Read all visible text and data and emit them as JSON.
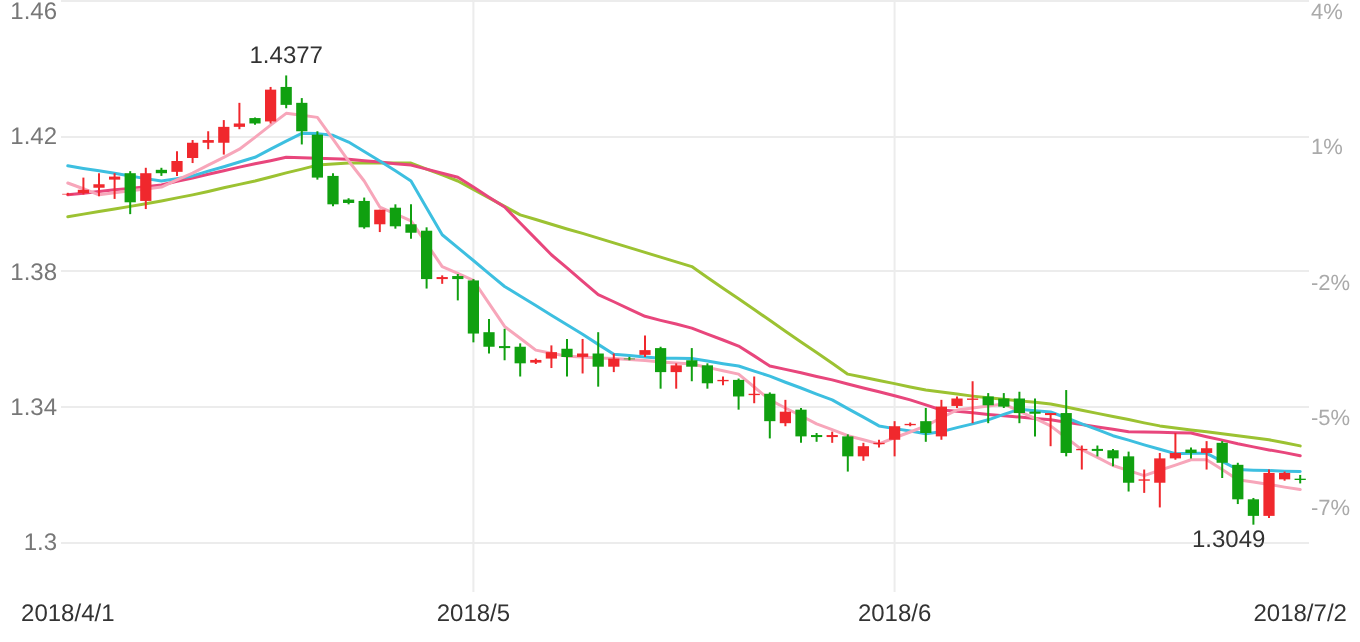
{
  "chart_data": {
    "type": "candlestick",
    "categories": [
      "2018/4/1",
      null,
      null,
      null,
      null,
      null,
      null,
      null,
      null,
      null,
      null,
      null,
      null,
      null,
      null,
      null,
      null,
      null,
      null,
      null,
      null,
      null,
      null,
      null,
      null,
      null,
      "2018/5",
      null,
      null,
      null,
      null,
      null,
      null,
      null,
      null,
      null,
      null,
      null,
      null,
      null,
      null,
      null,
      null,
      null,
      null,
      null,
      null,
      null,
      null,
      null,
      null,
      null,
      null,
      "2018/6",
      null,
      null,
      null,
      null,
      null,
      null,
      null,
      null,
      null,
      null,
      null,
      null,
      null,
      null,
      null,
      null,
      null,
      null,
      null,
      null,
      null,
      null,
      null,
      null,
      null,
      "2018/7/2"
    ],
    "ohlc": [
      [
        1.4025,
        1.403,
        1.4022,
        1.4027
      ],
      [
        1.4029,
        1.4075,
        1.4025,
        1.4039
      ],
      [
        1.4045,
        1.4088,
        1.402,
        1.4055
      ],
      [
        1.4069,
        1.4088,
        1.4012,
        1.4078
      ],
      [
        1.4088,
        1.4094,
        1.3967,
        1.4002
      ],
      [
        1.4006,
        1.4104,
        1.3982,
        1.4088
      ],
      [
        1.4098,
        1.4104,
        1.408,
        1.4088
      ],
      [
        1.4092,
        1.4153,
        1.408,
        1.4124
      ],
      [
        1.4133,
        1.4186,
        1.4118,
        1.4178
      ],
      [
        1.4178,
        1.4212,
        1.4159,
        1.4186
      ],
      [
        1.4178,
        1.4245,
        1.4143,
        1.4225
      ],
      [
        1.4225,
        1.4296,
        1.4218,
        1.4235
      ],
      [
        1.4251,
        1.4253,
        1.4231,
        1.4235
      ],
      [
        1.4241,
        1.4343,
        1.4235,
        1.4335
      ],
      [
        1.4343,
        1.4377,
        1.428,
        1.429
      ],
      [
        1.4296,
        1.431,
        1.4173,
        1.4212
      ],
      [
        1.4202,
        1.4212,
        1.4069,
        1.4075
      ],
      [
        1.408,
        1.4088,
        1.399,
        1.3996
      ],
      [
        1.401,
        1.4014,
        1.3996,
        1.4
      ],
      [
        1.4006,
        1.4016,
        1.3924,
        1.3928
      ],
      [
        1.3937,
        1.398,
        1.3914,
        1.398
      ],
      [
        1.3986,
        1.3996,
        1.3924,
        1.3931
      ],
      [
        1.3937,
        1.3996,
        1.3894,
        1.3912
      ],
      [
        1.3918,
        1.3928,
        1.3747,
        1.3775
      ],
      [
        1.3775,
        1.3786,
        1.3761,
        1.3781
      ],
      [
        1.3784,
        1.379,
        1.3712,
        1.3775
      ],
      [
        1.3771,
        1.3775,
        1.3588,
        1.3614
      ],
      [
        1.3618,
        1.3657,
        1.3555,
        1.3575
      ],
      [
        1.3577,
        1.3628,
        1.3535,
        1.3571
      ],
      [
        1.3575,
        1.3585,
        1.3487,
        1.3526
      ],
      [
        1.3528,
        1.354,
        1.3524,
        1.3536
      ],
      [
        1.354,
        1.3579,
        1.3512,
        1.3559
      ],
      [
        1.3569,
        1.3598,
        1.3487,
        1.3545
      ],
      [
        1.3545,
        1.3598,
        1.3496,
        1.3555
      ],
      [
        1.3555,
        1.3618,
        1.3457,
        1.3516
      ],
      [
        1.3516,
        1.3555,
        1.35,
        1.354
      ],
      [
        1.354,
        1.3545,
        1.3535,
        1.3538
      ],
      [
        1.3551,
        1.3608,
        1.3545,
        1.3565
      ],
      [
        1.3571,
        1.3575,
        1.3451,
        1.35
      ],
      [
        1.35,
        1.3526,
        1.3451,
        1.352
      ],
      [
        1.3535,
        1.3571,
        1.3473,
        1.3516
      ],
      [
        1.352,
        1.3526,
        1.3451,
        1.3467
      ],
      [
        1.3473,
        1.3487,
        1.3461,
        1.3477
      ],
      [
        1.3477,
        1.3481,
        1.3389,
        1.3428
      ],
      [
        1.3432,
        1.3487,
        1.3408,
        1.3436
      ],
      [
        1.3436,
        1.344,
        1.3304,
        1.3355
      ],
      [
        1.3349,
        1.3418,
        1.334,
        1.3383
      ],
      [
        1.3389,
        1.3394,
        1.3291,
        1.331
      ],
      [
        1.3314,
        1.332,
        1.3294,
        1.3308
      ],
      [
        1.3308,
        1.3324,
        1.3291,
        1.3314
      ],
      [
        1.331,
        1.3316,
        1.3206,
        1.3251
      ],
      [
        1.3251,
        1.3291,
        1.3238,
        1.3281
      ],
      [
        1.3287,
        1.33,
        1.3277,
        1.3291
      ],
      [
        1.33,
        1.3355,
        1.3251,
        1.334
      ],
      [
        1.3343,
        1.3351,
        1.334,
        1.3347
      ],
      [
        1.3355,
        1.3394,
        1.3294,
        1.332
      ],
      [
        1.331,
        1.3418,
        1.33,
        1.3398
      ],
      [
        1.34,
        1.3428,
        1.3394,
        1.3422
      ],
      [
        1.3418,
        1.3473,
        1.3349,
        1.3422
      ],
      [
        1.3428,
        1.3438,
        1.3349,
        1.3402
      ],
      [
        1.3422,
        1.3438,
        1.3394,
        1.3398
      ],
      [
        1.3422,
        1.3442,
        1.3349,
        1.3379
      ],
      [
        1.3383,
        1.3422,
        1.331,
        1.3377
      ],
      [
        1.3373,
        1.3379,
        1.3281,
        1.3379
      ],
      [
        1.3379,
        1.3447,
        1.3251,
        1.3261
      ],
      [
        1.3269,
        1.3283,
        1.3212,
        1.3273
      ],
      [
        1.3273,
        1.3283,
        1.3251,
        1.3267
      ],
      [
        1.3269,
        1.3273,
        1.3222,
        1.3245
      ],
      [
        1.3251,
        1.3265,
        1.3147,
        1.3173
      ],
      [
        1.3179,
        1.3212,
        1.3143,
        1.3183
      ],
      [
        1.3173,
        1.3261,
        1.31,
        1.3245
      ],
      [
        1.3245,
        1.332,
        1.3241,
        1.3261
      ],
      [
        1.3271,
        1.3277,
        1.3245,
        1.3261
      ],
      [
        1.3261,
        1.3296,
        1.3212,
        1.3275
      ],
      [
        1.3291,
        1.3296,
        1.3187,
        1.3232
      ],
      [
        1.3226,
        1.3232,
        1.311,
        1.3124
      ],
      [
        1.3124,
        1.3128,
        1.3049,
        1.3075
      ],
      [
        1.3075,
        1.3212,
        1.3069,
        1.3202
      ],
      [
        1.3183,
        1.3206,
        1.3179,
        1.3202
      ],
      [
        1.3185,
        1.3196,
        1.3171,
        1.3181
      ]
    ],
    "colors": [
      "#f0282d",
      "#f0282d",
      "#f0282d",
      "#f0282d",
      "#10a010",
      "#f0282d",
      "#10a010",
      "#f0282d",
      "#f0282d",
      "#f0282d",
      "#f0282d",
      "#f0282d",
      "#10a010",
      "#f0282d",
      "#10a010",
      "#10a010",
      "#10a010",
      "#10a010",
      "#10a010",
      "#10a010",
      "#f0282d",
      "#10a010",
      "#10a010",
      "#10a010",
      "#f0282d",
      "#10a010",
      "#10a010",
      "#10a010",
      "#10a010",
      "#10a010",
      "#f0282d",
      "#f0282d",
      "#10a010",
      "#f0282d",
      "#10a010",
      "#f0282d",
      "#10a010",
      "#f0282d",
      "#10a010",
      "#f0282d",
      "#10a010",
      "#10a010",
      "#f0282d",
      "#10a010",
      "#f0282d",
      "#10a010",
      "#f0282d",
      "#10a010",
      "#10a010",
      "#f0282d",
      "#10a010",
      "#f0282d",
      "#f0282d",
      "#f0282d",
      "#f0282d",
      "#10a010",
      "#f0282d",
      "#f0282d",
      "#f0282d",
      "#10a010",
      "#10a010",
      "#10a010",
      "#10a010",
      "#f0282d",
      "#10a010",
      "#f0282d",
      "#10a010",
      "#10a010",
      "#10a010",
      "#f0282d",
      "#f0282d",
      "#f0282d",
      "#10a010",
      "#f0282d",
      "#10a010",
      "#10a010",
      "#10a010",
      "#f0282d",
      "#f0282d",
      "#10a010"
    ],
    "series": [
      {
        "type": "line",
        "color": "#9cc232",
        "values": [
          1.3959,
          1.3967,
          1.3975,
          1.3982,
          1.399,
          1.3998,
          1.4006,
          1.4015,
          1.4024,
          1.4034,
          1.4045,
          1.4055,
          1.4065,
          1.4077,
          1.4089,
          1.41,
          1.4112,
          1.4115,
          1.4118,
          1.4118,
          1.4118,
          1.4118,
          1.4118,
          1.41,
          1.4083,
          1.4065,
          1.404,
          1.4015,
          1.399,
          1.3965,
          1.3951,
          1.3937,
          1.3923,
          1.391,
          1.3896,
          1.3882,
          1.3868,
          1.3854,
          1.384,
          1.3826,
          1.3812,
          1.378,
          1.3748,
          1.3717,
          1.3685,
          1.3653,
          1.3621,
          1.3589,
          1.3558,
          1.3526,
          1.3494,
          1.3485,
          1.3475,
          1.3466,
          1.3456,
          1.3447,
          1.3441,
          1.3435,
          1.3429,
          1.3424,
          1.342,
          1.3415,
          1.3411,
          1.3406,
          1.3397,
          1.3387,
          1.3378,
          1.3369,
          1.336,
          1.335,
          1.3341,
          1.3335,
          1.3329,
          1.3324,
          1.3318,
          1.3312,
          1.3306,
          1.33,
          1.3291,
          1.3282
        ]
      },
      {
        "type": "line",
        "color": "#e8467c",
        "values": [
          1.4024,
          1.4029,
          1.4034,
          1.4039,
          1.4043,
          1.4048,
          1.4053,
          1.4064,
          1.4074,
          1.4085,
          1.4095,
          1.4106,
          1.4116,
          1.4125,
          1.4135,
          1.4134,
          1.4132,
          1.4131,
          1.4129,
          1.4125,
          1.4121,
          1.4116,
          1.4112,
          1.41,
          1.4088,
          1.4076,
          1.4047,
          1.4017,
          1.3988,
          1.3941,
          1.3894,
          1.3847,
          1.3808,
          1.3768,
          1.3729,
          1.3708,
          1.3686,
          1.3665,
          1.3653,
          1.3642,
          1.363,
          1.3612,
          1.3595,
          1.3577,
          1.3548,
          1.3518,
          1.3508,
          1.3498,
          1.3487,
          1.3477,
          1.3465,
          1.3453,
          1.3442,
          1.343,
          1.3418,
          1.3403,
          1.3388,
          1.3384,
          1.338,
          1.3375,
          1.3371,
          1.3367,
          1.3363,
          1.3359,
          1.3352,
          1.3345,
          1.3338,
          1.3331,
          1.3324,
          1.3323,
          1.3322,
          1.3321,
          1.332,
          1.3309,
          1.3299,
          1.3288,
          1.3279,
          1.327,
          1.3262,
          1.3253
        ]
      },
      {
        "type": "line",
        "color": "#3dbfe0",
        "values": [
          1.411,
          1.4102,
          1.4095,
          1.4088,
          1.408,
          1.4072,
          1.4065,
          1.4072,
          1.408,
          1.4094,
          1.4107,
          1.4121,
          1.4135,
          1.4159,
          1.4183,
          1.4206,
          1.4205,
          1.42,
          1.418,
          1.4152,
          1.4124,
          1.4095,
          1.4065,
          1.3985,
          1.3906,
          1.3868,
          1.383,
          1.3791,
          1.3753,
          1.3725,
          1.3697,
          1.3668,
          1.364,
          1.3612,
          1.3582,
          1.3553,
          1.3549,
          1.3545,
          1.3541,
          1.3541,
          1.354,
          1.3533,
          1.3525,
          1.3518,
          1.3503,
          1.3488,
          1.347,
          1.3453,
          1.3435,
          1.3418,
          1.3392,
          1.3367,
          1.3341,
          1.3333,
          1.3326,
          1.3318,
          1.3324,
          1.3336,
          1.3347,
          1.3359,
          1.3375,
          1.339,
          1.3386,
          1.3382,
          1.3365,
          1.3347,
          1.333,
          1.3312,
          1.3299,
          1.3285,
          1.3272,
          1.3259,
          1.326,
          1.326,
          1.3236,
          1.3212,
          1.321,
          1.3209,
          1.3207,
          1.3206
        ]
      },
      {
        "type": "line",
        "color": "#f7a6ba",
        "values": [
          1.4059,
          1.4042,
          1.4024,
          1.403,
          1.4036,
          1.4041,
          1.4047,
          1.4068,
          1.4088,
          1.4112,
          1.4135,
          1.4159,
          1.4194,
          1.423,
          1.4265,
          1.4259,
          1.4253,
          1.4189,
          1.4124,
          1.4065,
          1.3988,
          1.3968,
          1.3947,
          1.388,
          1.3812,
          1.3792,
          1.3771,
          1.3703,
          1.3635,
          1.36,
          1.3565,
          1.3556,
          1.3547,
          1.3545,
          1.3542,
          1.354,
          1.3537,
          1.3534,
          1.353,
          1.3527,
          1.3524,
          1.3514,
          1.3504,
          1.3494,
          1.3456,
          1.3418,
          1.3394,
          1.3371,
          1.3347,
          1.333,
          1.3312,
          1.33,
          1.3288,
          1.3306,
          1.3323,
          1.3341,
          1.3365,
          1.3388,
          1.3394,
          1.34,
          1.3406,
          1.3384,
          1.3363,
          1.3341,
          1.3306,
          1.3271,
          1.3248,
          1.3224,
          1.3209,
          1.3194,
          1.321,
          1.3225,
          1.3241,
          1.3241,
          1.3212,
          1.3182,
          1.3175,
          1.3168,
          1.316,
          1.3153
        ]
      }
    ],
    "ylim": [
      1.285,
      1.46
    ],
    "yticks": [
      1.3,
      1.34,
      1.38,
      1.42,
      1.46
    ],
    "y2lim": [
      -9.12,
      4
    ],
    "y2ticks": [
      {
        "value": -7,
        "label": "-7%"
      },
      {
        "value": -5,
        "label": "-5%"
      },
      {
        "value": -2,
        "label": "-2%"
      },
      {
        "value": 1,
        "label": "1%"
      },
      {
        "value": 4,
        "label": "4%"
      }
    ],
    "grid": true,
    "annotations": [
      "1.4377",
      "1.3049"
    ]
  }
}
